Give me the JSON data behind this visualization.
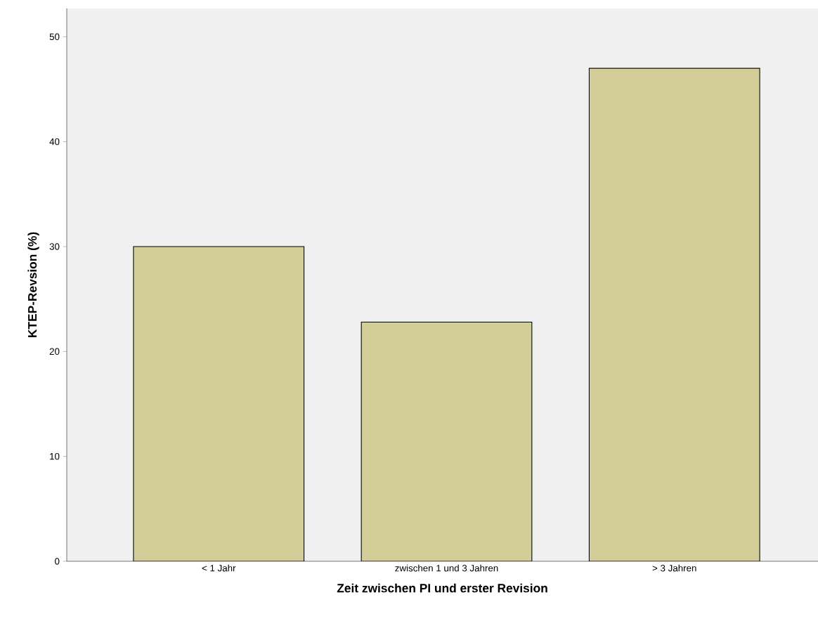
{
  "chart_data": {
    "type": "bar",
    "xlabel": "Zeit zwischen PI und erster Revision",
    "ylabel": "KTEP-Revsion (%)",
    "categories": [
      "< 1 Jahr",
      "zwischen 1 und 3 Jahren",
      "> 3 Jahren"
    ],
    "values": [
      30,
      22.8,
      47
    ],
    "color": "#d3ce97",
    "ylim": [
      0,
      52.7
    ],
    "yticks": [
      0,
      10,
      20,
      30,
      40,
      50
    ]
  }
}
